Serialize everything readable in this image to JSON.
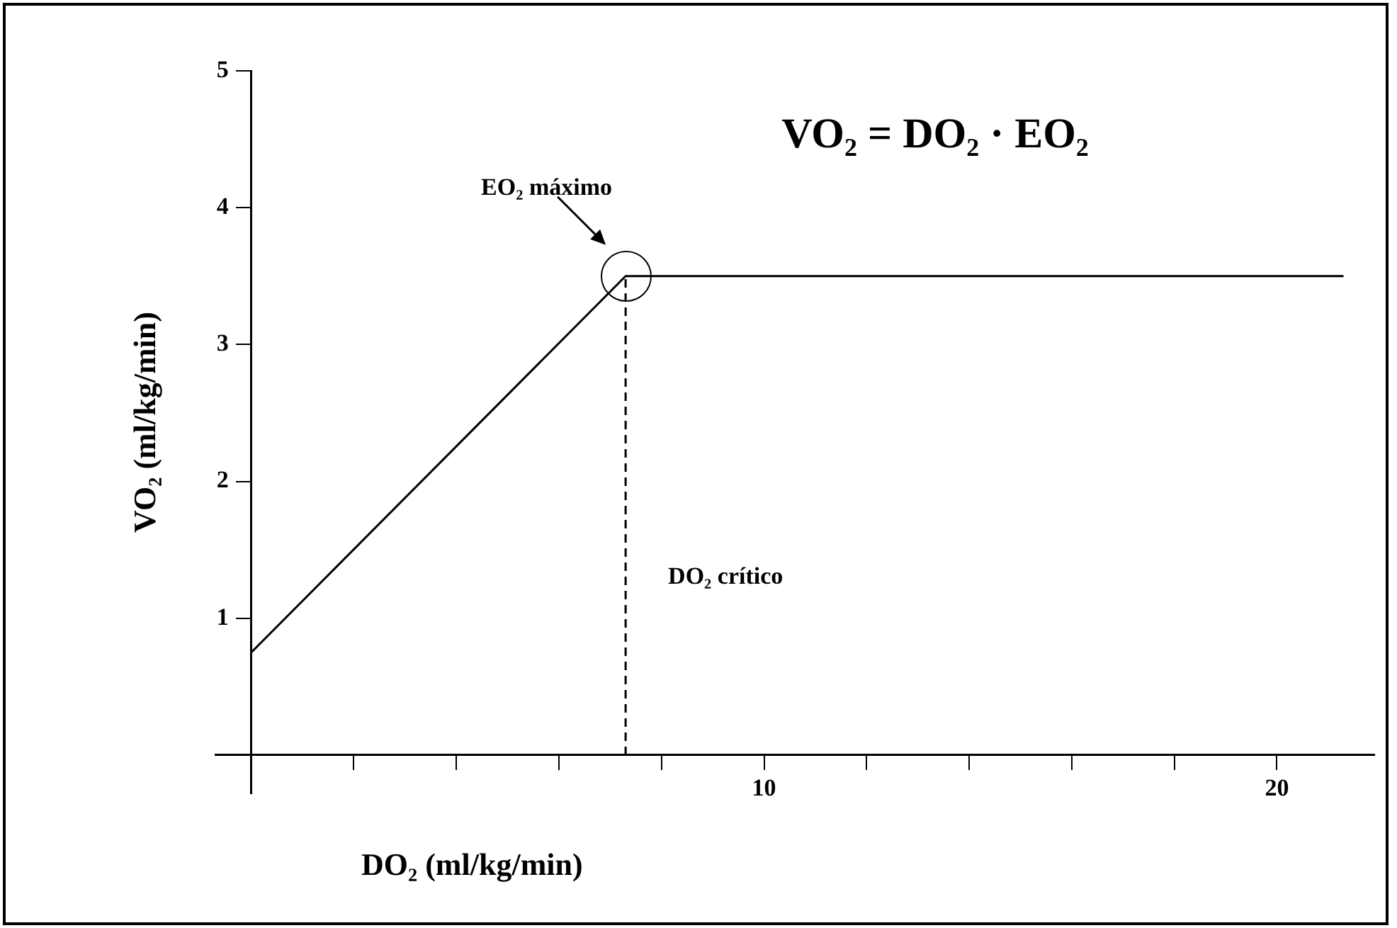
{
  "chart_data": {
    "type": "line",
    "title": "VO₂ = DO₂ · EO₂",
    "xlabel": "DO₂ (ml/kg/min)",
    "ylabel": "VO₂ (ml/kg/min)",
    "series": [
      {
        "color": "#000000",
        "x": [
          0,
          7.3,
          21.3
        ],
        "values": [
          0.75,
          3.5,
          3.5
        ]
      },
      {
        "color": "#000000",
        "x": [
          7.3,
          7.3
        ],
        "values": [
          0,
          3.5
        ],
        "line_style": "dashed"
      }
    ],
    "xlim": [
      -0.7,
      21.9
    ],
    "ylim": [
      -0.28,
      5
    ],
    "xticks": [
      {
        "value": 0,
        "label": null
      },
      {
        "value": 2,
        "label": null
      },
      {
        "value": 4,
        "label": null
      },
      {
        "value": 6,
        "label": null
      },
      {
        "value": 8,
        "label": null
      },
      10,
      {
        "value": 12,
        "label": null
      },
      {
        "value": 14,
        "label": null
      },
      {
        "value": 16,
        "label": null
      },
      {
        "value": 18,
        "label": null
      },
      20
    ],
    "yticks": [
      1,
      2,
      3,
      4,
      5
    ],
    "annotations": [
      "EO₂ máximo",
      {
        "text": "DO₂ crítico",
        "x": 7.3,
        "y": 1.3
      }
    ],
    "grid": false,
    "legend": false,
    "marker": "none",
    "line_style": "solid"
  }
}
